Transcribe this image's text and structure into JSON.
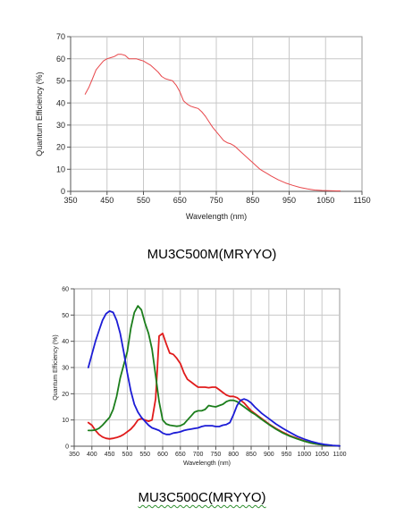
{
  "captions": {
    "chart1": "MU3C500M(MRYYO)",
    "chart2": "MU3C500C(MRYYO)"
  },
  "chart_data": [
    {
      "type": "line",
      "xlabel": "Wavelength (nm)",
      "ylabel": "Quantum Efficiency (%)",
      "xlim": [
        350,
        1150
      ],
      "ylim": [
        0,
        70
      ],
      "xticks": [
        350,
        450,
        550,
        650,
        750,
        850,
        950,
        1050,
        1150
      ],
      "yticks": [
        0,
        10,
        20,
        30,
        40,
        50,
        60,
        70
      ],
      "grid": true,
      "series": [
        {
          "color": "#e8474b",
          "x": [
            390,
            400,
            410,
            420,
            430,
            440,
            450,
            460,
            470,
            480,
            490,
            500,
            510,
            520,
            530,
            540,
            550,
            560,
            570,
            580,
            590,
            600,
            610,
            620,
            630,
            640,
            650,
            660,
            670,
            680,
            690,
            700,
            710,
            720,
            730,
            740,
            750,
            760,
            770,
            780,
            790,
            800,
            810,
            820,
            830,
            840,
            850,
            860,
            870,
            880,
            890,
            900,
            920,
            940,
            960,
            980,
            1000,
            1020,
            1040,
            1060,
            1080,
            1090
          ],
          "values": [
            44,
            47,
            51,
            55,
            57,
            59,
            60,
            60.5,
            61,
            62,
            62,
            61.5,
            60,
            60,
            60,
            59.5,
            59,
            58,
            57,
            55.5,
            54,
            52,
            51,
            50.5,
            50,
            48,
            45,
            41,
            39.5,
            38.5,
            38,
            37.5,
            36,
            34,
            31.5,
            29,
            27,
            25,
            23,
            22,
            21.5,
            20.5,
            19,
            17.5,
            16,
            14.5,
            13,
            11.5,
            10,
            9,
            8,
            7,
            5.2,
            3.8,
            2.7,
            1.8,
            1.1,
            0.6,
            0.4,
            0.3,
            0.2,
            0.2
          ]
        }
      ]
    },
    {
      "type": "line",
      "xlabel": "Wavelength (nm)",
      "ylabel": "Quantum Efficiency (%)",
      "xlim": [
        350,
        1100
      ],
      "ylim": [
        0,
        60
      ],
      "xticks": [
        350,
        400,
        450,
        500,
        550,
        600,
        650,
        700,
        750,
        800,
        850,
        900,
        950,
        1000,
        1050,
        1100
      ],
      "yticks": [
        0,
        10,
        20,
        30,
        40,
        50,
        60
      ],
      "grid": true,
      "series": [
        {
          "color": "#e01b1b",
          "x": [
            390,
            400,
            410,
            420,
            430,
            440,
            450,
            460,
            470,
            480,
            490,
            500,
            510,
            520,
            530,
            540,
            550,
            560,
            570,
            580,
            585,
            590,
            600,
            610,
            620,
            630,
            640,
            650,
            660,
            670,
            680,
            690,
            700,
            710,
            720,
            730,
            740,
            750,
            760,
            770,
            780,
            790,
            800,
            810,
            820,
            830,
            840,
            850,
            860,
            880,
            900,
            920,
            940,
            960,
            980,
            1000,
            1020,
            1040,
            1060,
            1080,
            1100
          ],
          "values": [
            9,
            8,
            6,
            4.5,
            3.5,
            3,
            2.8,
            3,
            3.3,
            3.8,
            4.5,
            5.5,
            6.5,
            8,
            10,
            10.5,
            10,
            9.5,
            10,
            18,
            30,
            42,
            43,
            39,
            35.5,
            35,
            33.5,
            31.5,
            28,
            25.5,
            24.5,
            23.5,
            22.5,
            22.5,
            22.5,
            22.3,
            22.5,
            22.5,
            21.5,
            20.5,
            19.5,
            19,
            19,
            18.5,
            17.5,
            16.5,
            15,
            13.5,
            12.5,
            10.5,
            8.5,
            6.8,
            5.3,
            4,
            3,
            2,
            1.2,
            0.7,
            0.4,
            0.2,
            0.1
          ]
        },
        {
          "color": "#1c7e1c",
          "x": [
            390,
            400,
            410,
            420,
            430,
            440,
            450,
            460,
            470,
            480,
            490,
            500,
            510,
            520,
            530,
            540,
            550,
            560,
            570,
            580,
            590,
            600,
            610,
            620,
            630,
            640,
            650,
            660,
            670,
            680,
            690,
            700,
            710,
            720,
            730,
            740,
            750,
            760,
            770,
            780,
            790,
            800,
            810,
            820,
            830,
            840,
            850,
            860,
            880,
            900,
            920,
            940,
            960,
            980,
            1000,
            1020,
            1040,
            1060,
            1080,
            1100
          ],
          "values": [
            6,
            6,
            6.2,
            6.8,
            8,
            9.5,
            11,
            14,
            19,
            26,
            31,
            36,
            45,
            51,
            53.5,
            52,
            47,
            43,
            37,
            27,
            17,
            10,
            8.5,
            8,
            7.8,
            7.6,
            7.8,
            8.5,
            10,
            11.5,
            13,
            13.5,
            13.5,
            14,
            15.5,
            15.2,
            15,
            15.5,
            16,
            17,
            17.5,
            17.5,
            17,
            16,
            15,
            14,
            13,
            12.2,
            10.2,
            8.3,
            6.5,
            5,
            3.8,
            2.8,
            1.9,
            1.2,
            0.7,
            0.4,
            0.2,
            0.1
          ]
        },
        {
          "color": "#1c1cd6",
          "x": [
            390,
            400,
            410,
            420,
            430,
            440,
            450,
            460,
            470,
            480,
            490,
            500,
            510,
            520,
            530,
            540,
            550,
            560,
            570,
            580,
            590,
            600,
            610,
            620,
            630,
            640,
            650,
            660,
            670,
            680,
            690,
            700,
            710,
            720,
            730,
            740,
            750,
            760,
            770,
            780,
            790,
            800,
            810,
            820,
            830,
            840,
            850,
            860,
            880,
            900,
            920,
            940,
            960,
            980,
            1000,
            1020,
            1040,
            1060,
            1080,
            1100
          ],
          "values": [
            30,
            35,
            40,
            44,
            48,
            50.5,
            51.5,
            51,
            48,
            43,
            36,
            28,
            21,
            16,
            13,
            11,
            9.5,
            8,
            7,
            6.5,
            6,
            5,
            4.5,
            4.5,
            5,
            5.2,
            5.5,
            6,
            6.3,
            6.5,
            6.8,
            7,
            7.5,
            7.8,
            7.8,
            7.8,
            7.5,
            7.5,
            8,
            8.3,
            9,
            12,
            15.5,
            17.5,
            18,
            17.5,
            16.5,
            15,
            12.5,
            10.5,
            8.5,
            6.8,
            5.2,
            3.8,
            2.7,
            1.8,
            1.1,
            0.6,
            0.3,
            0.1
          ]
        }
      ]
    }
  ]
}
